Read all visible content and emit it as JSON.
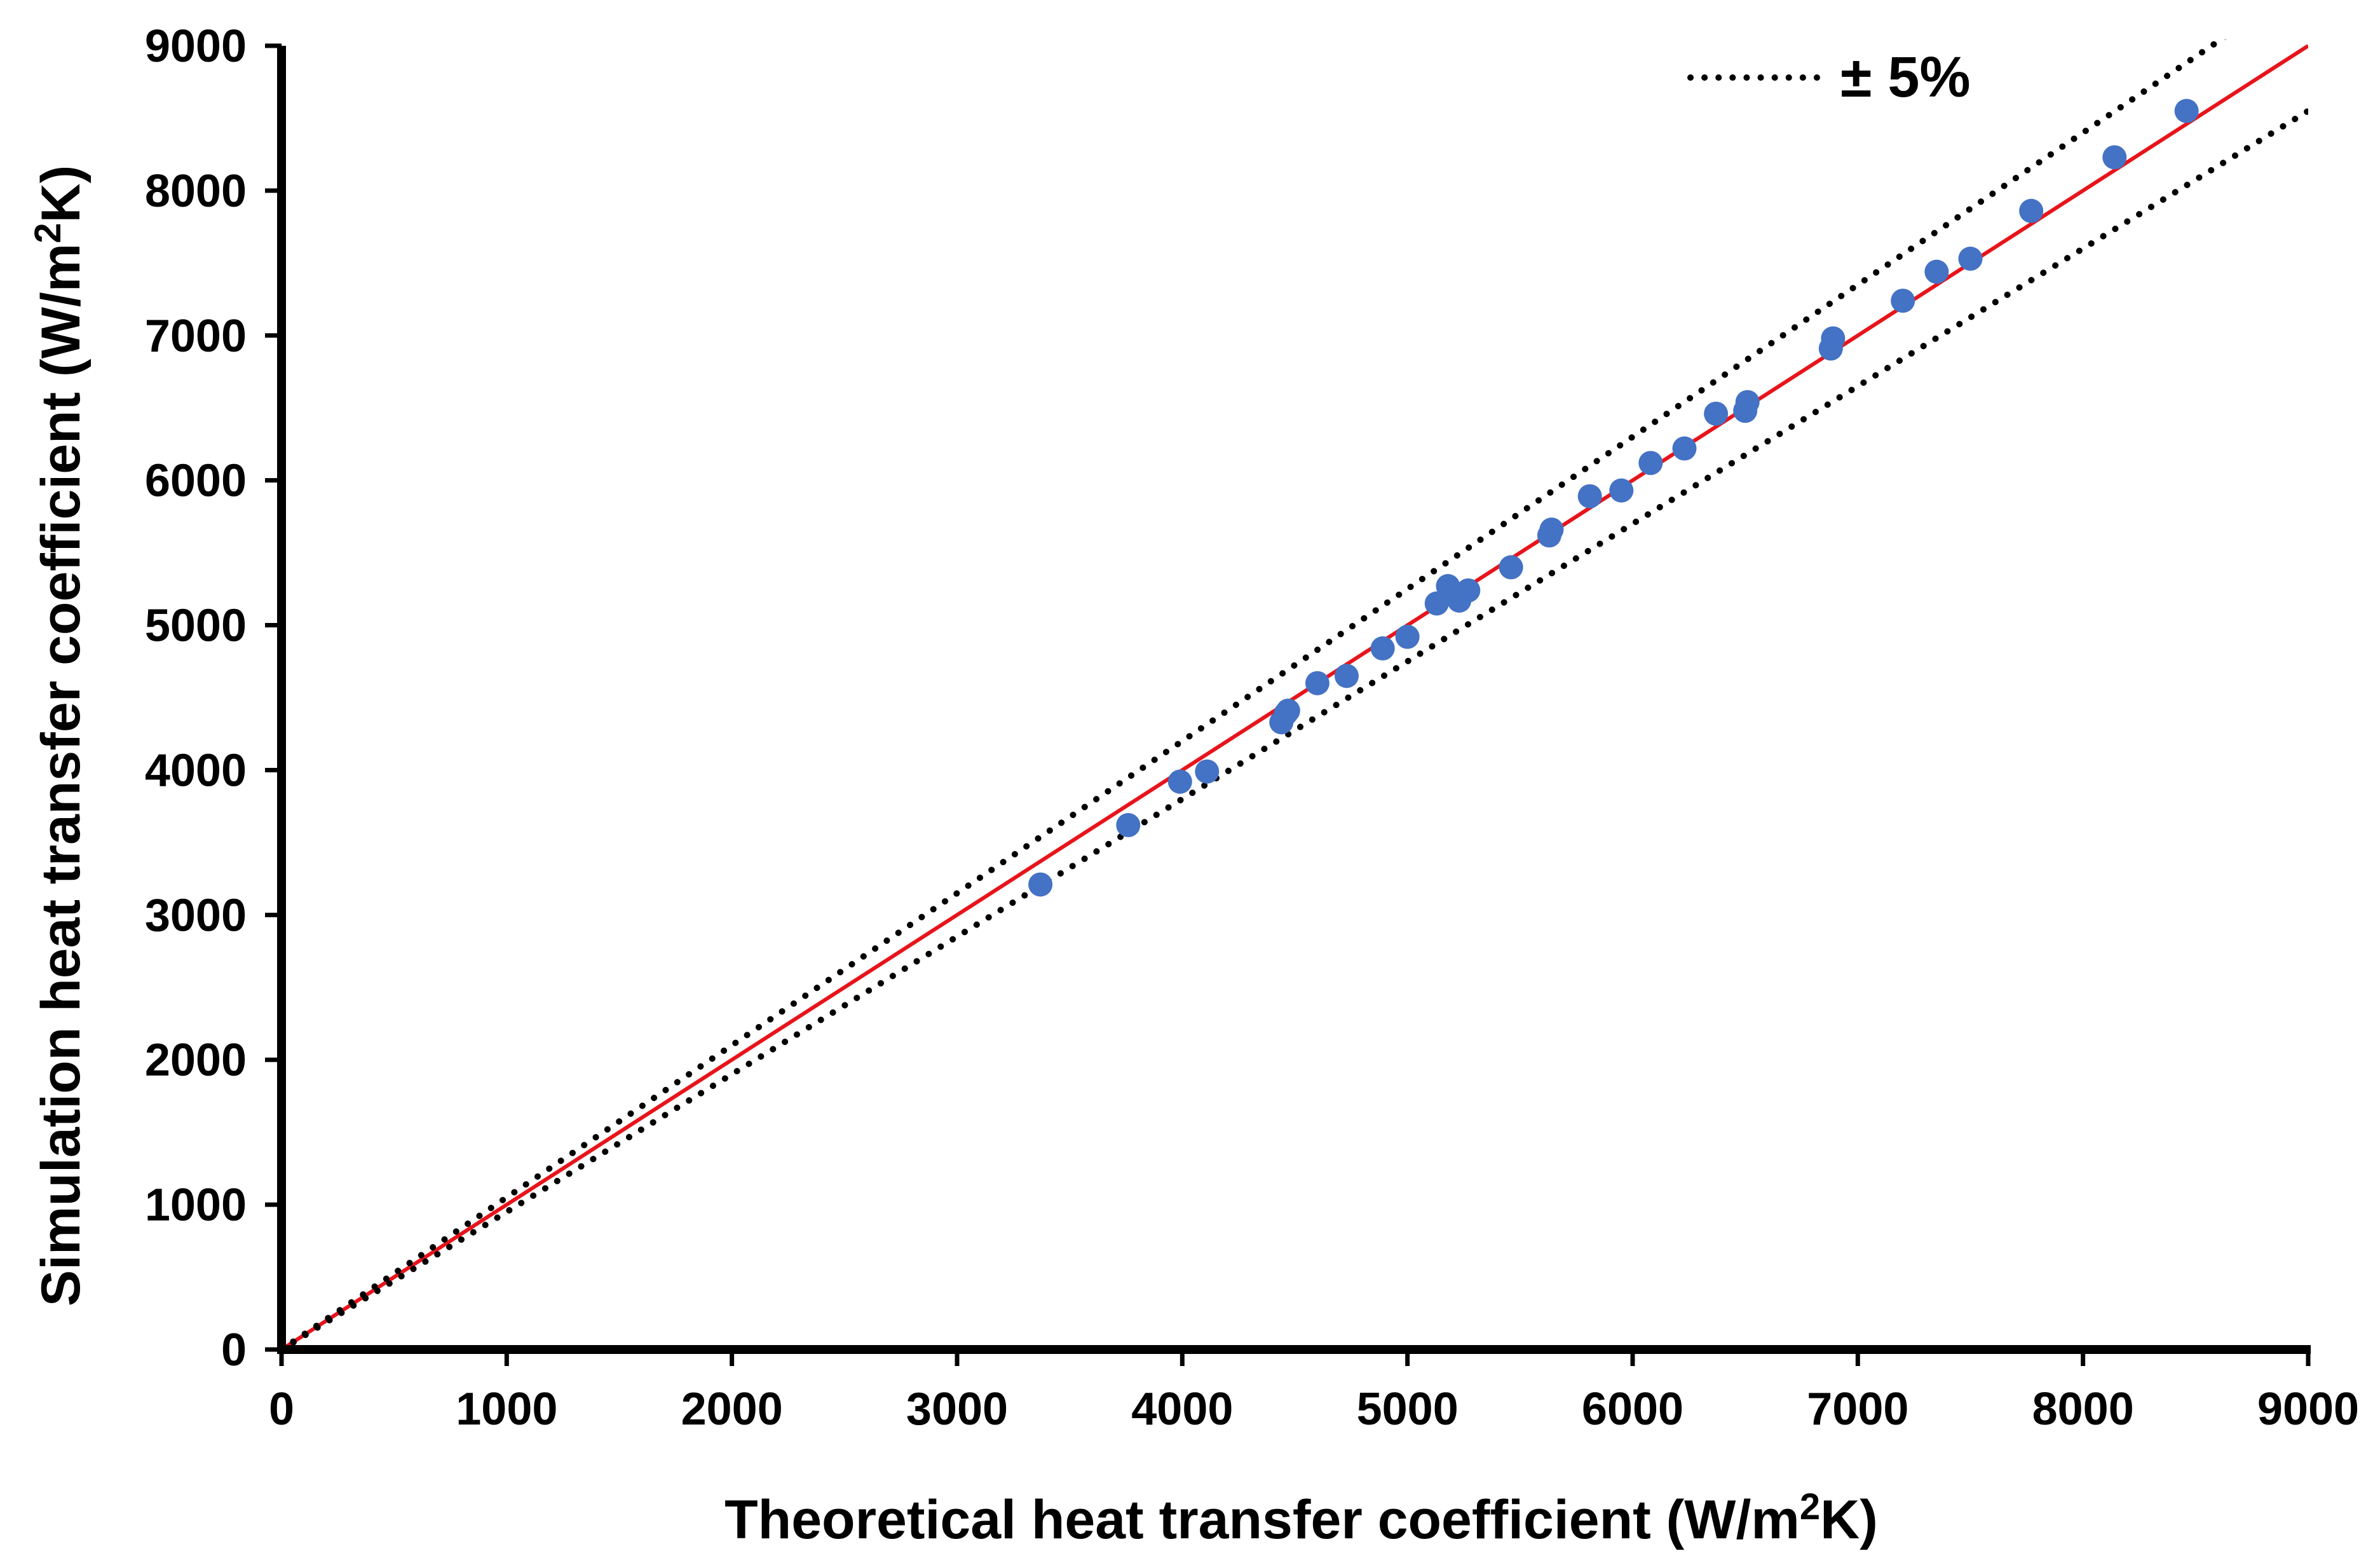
{
  "chart_data": {
    "type": "scatter",
    "title": "",
    "xlabel": "Theoretical heat transfer coefficient (W/m²K)",
    "ylabel": "Simulation heat transfer coefficient (W/m²K)",
    "xlabel_parts": {
      "before": "Theoretical heat transfer coefficient (W/m",
      "sup": "2",
      "after": "K)"
    },
    "ylabel_parts": {
      "before": "Simulation heat transfer coefficient (W/m",
      "sup": "2",
      "after": "K)"
    },
    "xlim": [
      0,
      9000
    ],
    "ylim": [
      0,
      9000
    ],
    "xticks": [
      0,
      1000,
      2000,
      3000,
      4000,
      5000,
      6000,
      7000,
      8000,
      9000
    ],
    "yticks": [
      0,
      1000,
      2000,
      3000,
      4000,
      5000,
      6000,
      7000,
      8000,
      9000
    ],
    "grid": false,
    "legend": {
      "position": "top-right",
      "entries": [
        {
          "label": "± 5%",
          "style": "dotted",
          "color": "#000000"
        }
      ]
    },
    "reference_lines": [
      {
        "name": "y = x",
        "slope": 1.0,
        "color": "#e8141b",
        "style": "solid"
      },
      {
        "name": "+5%",
        "slope": 1.05,
        "color": "#000000",
        "style": "dotted"
      },
      {
        "name": "-5%",
        "slope": 0.95,
        "color": "#000000",
        "style": "dotted"
      }
    ],
    "series": [
      {
        "name": "Data",
        "color": "#4472c4",
        "points": [
          [
            3370,
            3210
          ],
          [
            3760,
            3620
          ],
          [
            3990,
            3920
          ],
          [
            4110,
            3990
          ],
          [
            4440,
            4330
          ],
          [
            4460,
            4390
          ],
          [
            4470,
            4410
          ],
          [
            4600,
            4600
          ],
          [
            4730,
            4650
          ],
          [
            4890,
            4840
          ],
          [
            5000,
            4920
          ],
          [
            5130,
            5150
          ],
          [
            5180,
            5270
          ],
          [
            5230,
            5170
          ],
          [
            5270,
            5240
          ],
          [
            5460,
            5400
          ],
          [
            5630,
            5620
          ],
          [
            5640,
            5660
          ],
          [
            5810,
            5890
          ],
          [
            5950,
            5930
          ],
          [
            6080,
            6120
          ],
          [
            6230,
            6220
          ],
          [
            6370,
            6460
          ],
          [
            6500,
            6480
          ],
          [
            6510,
            6540
          ],
          [
            6880,
            6910
          ],
          [
            6890,
            6980
          ],
          [
            7200,
            7240
          ],
          [
            7350,
            7440
          ],
          [
            7500,
            7530
          ],
          [
            7770,
            7860
          ],
          [
            8140,
            8230
          ],
          [
            8460,
            8550
          ]
        ]
      }
    ]
  },
  "colors": {
    "axis": "#000000",
    "marker": "#4472c4",
    "identity_line": "#e8141b"
  }
}
